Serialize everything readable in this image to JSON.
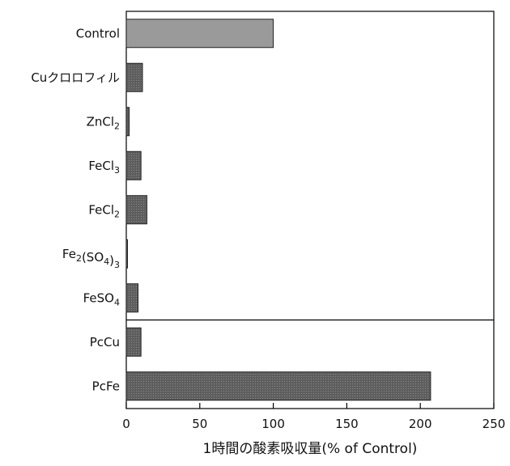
{
  "chart_data": {
    "type": "bar",
    "orientation": "horizontal",
    "categories": [
      {
        "text": "Control"
      },
      {
        "text": "Cuクロロフィル"
      },
      {
        "parts": [
          {
            "t": "ZnCl"
          },
          {
            "t": "2",
            "sub": true
          }
        ]
      },
      {
        "parts": [
          {
            "t": "FeCl"
          },
          {
            "t": "3",
            "sub": true
          }
        ]
      },
      {
        "parts": [
          {
            "t": "FeCl"
          },
          {
            "t": "2",
            "sub": true
          }
        ]
      },
      {
        "parts": [
          {
            "t": "Fe"
          },
          {
            "t": "2",
            "sub": true
          },
          {
            "t": "(SO"
          },
          {
            "t": "4",
            "sub": true
          },
          {
            "t": ")"
          },
          {
            "t": "3",
            "sub": true
          }
        ]
      },
      {
        "parts": [
          {
            "t": "FeSO"
          },
          {
            "t": "4",
            "sub": true
          }
        ]
      },
      {
        "text": "PcCu"
      },
      {
        "text": "PcFe"
      }
    ],
    "values": [
      100,
      11,
      2,
      10,
      14,
      0.5,
      8,
      10,
      207
    ],
    "xlabel": "1時間の酸素吸収量(% of Control)",
    "ylabel": "",
    "title": "",
    "xlim": [
      0,
      250
    ],
    "xticks": [
      "0",
      "50",
      "100",
      "150",
      "200",
      "250"
    ],
    "separator_after_index": 6,
    "grid": false,
    "colors": {
      "control_bar": "#9a9a9a",
      "bar": "#5e5e5e",
      "axis": "#000000"
    }
  }
}
